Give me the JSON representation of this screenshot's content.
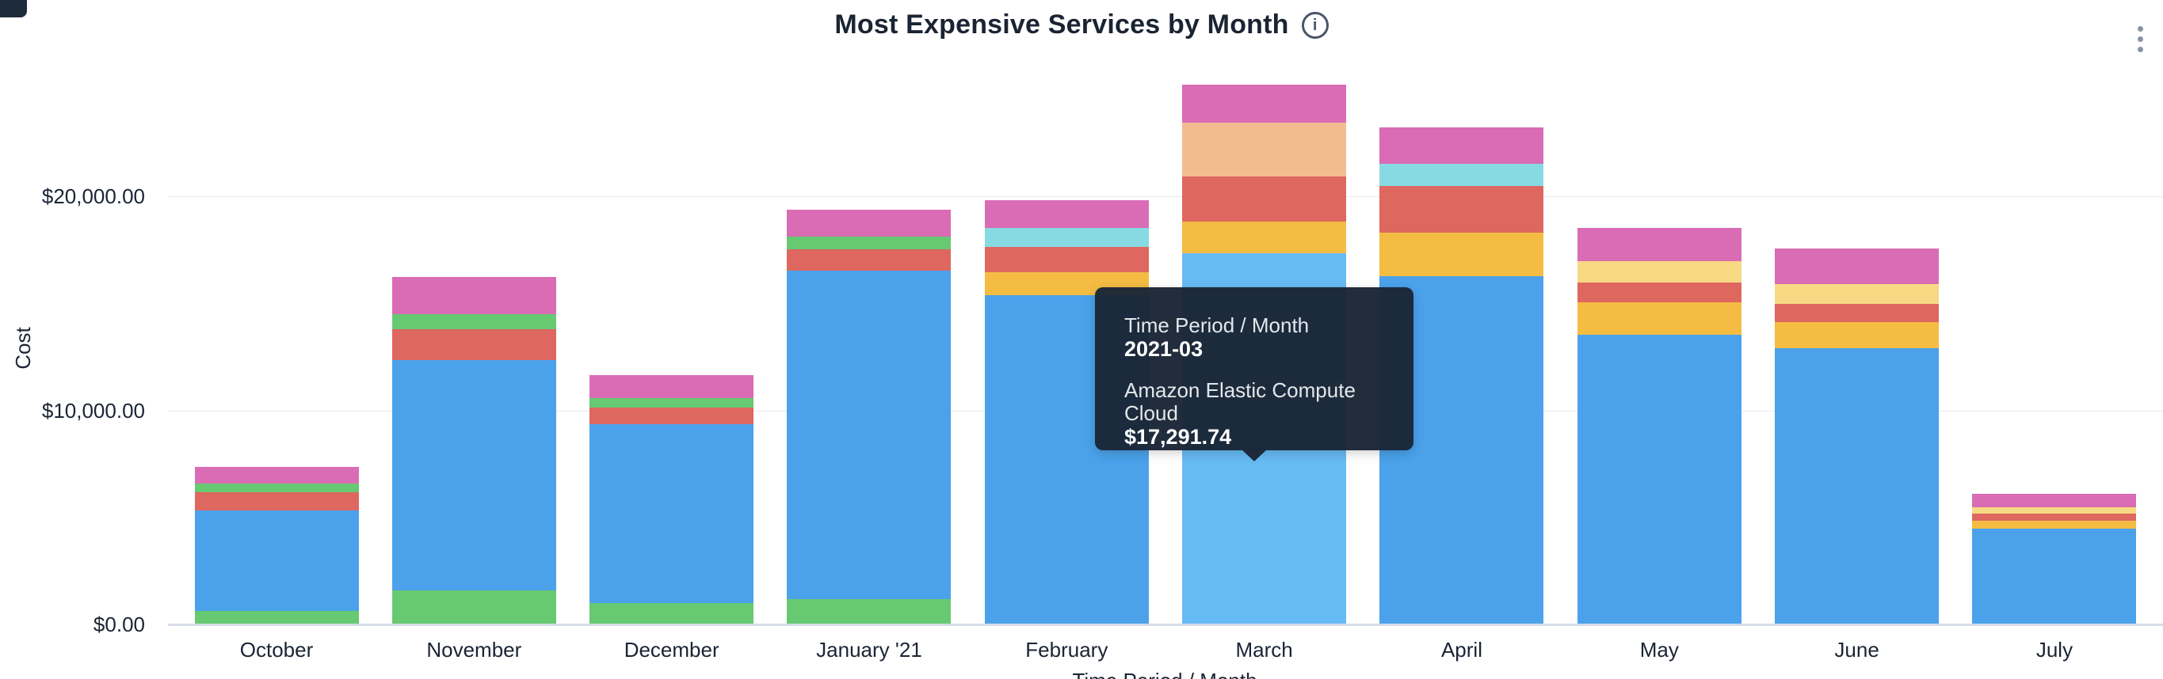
{
  "header": {
    "title": "Most Expensive Services by Month"
  },
  "y_axis": {
    "title": "Cost",
    "ticks": [
      "$20,000.00",
      "$10,000.00",
      "$0.00"
    ]
  },
  "x_axis": {
    "title": "Time Period / Month",
    "labels": [
      "October",
      "November",
      "December",
      "January '21",
      "February",
      "March",
      "April",
      "May",
      "June",
      "July"
    ]
  },
  "tooltip": {
    "header_label": "Time Period / Month",
    "period": "2021-03",
    "service": "Amazon Elastic Compute Cloud",
    "value": "$17,291.74"
  },
  "chart_data": {
    "type": "bar",
    "stacked": true,
    "title": "Most Expensive Services by Month",
    "xlabel": "Time Period / Month",
    "ylabel": "Cost",
    "ylim": [
      0,
      27000
    ],
    "y_ticks": [
      0,
      10000,
      20000
    ],
    "grid": "horizontal",
    "legend_visible": false,
    "categories": [
      "October",
      "November",
      "December",
      "January '21",
      "February",
      "March",
      "April",
      "May",
      "June",
      "July"
    ],
    "highlighted": {
      "month": "March",
      "series": "Amazon Elastic Compute Cloud",
      "value": 17291.74,
      "period": "2021-03"
    },
    "colors": {
      "blue": "#4ba2eb",
      "blue_highlight": "#67bbf4",
      "green": "#67c972",
      "red": "#de675f",
      "pink": "#d96cb4",
      "yellow": "#f4bc43",
      "pale_yellow": "#f8d983",
      "cyan": "#87dae2",
      "peach": "#f3bc8e"
    },
    "series_note": "blue = Amazon Elastic Compute Cloud (identified via tooltip); other segment services unlabeled in view, values estimated from axis scale",
    "bars": [
      {
        "month": "October",
        "total": 7310,
        "segments": [
          {
            "c": "green",
            "v": 610
          },
          {
            "c": "blue",
            "v": 4660
          },
          {
            "c": "red",
            "v": 850
          },
          {
            "c": "green",
            "v": 410
          },
          {
            "c": "pink",
            "v": 780
          }
        ]
      },
      {
        "month": "November",
        "total": 16180,
        "segments": [
          {
            "c": "green",
            "v": 1560
          },
          {
            "c": "blue",
            "v": 10740
          },
          {
            "c": "red",
            "v": 1460
          },
          {
            "c": "green",
            "v": 700
          },
          {
            "c": "pink",
            "v": 1720
          }
        ]
      },
      {
        "month": "December",
        "total": 11600,
        "segments": [
          {
            "c": "green",
            "v": 970
          },
          {
            "c": "blue",
            "v": 8340
          },
          {
            "c": "red",
            "v": 780
          },
          {
            "c": "green",
            "v": 460
          },
          {
            "c": "pink",
            "v": 1050
          }
        ]
      },
      {
        "month": "January '21",
        "total": 19330,
        "segments": [
          {
            "c": "green",
            "v": 1140
          },
          {
            "c": "blue",
            "v": 15350
          },
          {
            "c": "red",
            "v": 990
          },
          {
            "c": "green",
            "v": 580
          },
          {
            "c": "pink",
            "v": 1270
          }
        ]
      },
      {
        "month": "February",
        "total": 19780,
        "segments": [
          {
            "c": "blue",
            "v": 15320
          },
          {
            "c": "yellow",
            "v": 1070
          },
          {
            "c": "red",
            "v": 1210
          },
          {
            "c": "cyan",
            "v": 890
          },
          {
            "c": "pink",
            "v": 1290
          }
        ]
      },
      {
        "month": "March",
        "total": 25171.74,
        "segments": [
          {
            "c": "blue",
            "v": 17291.74,
            "hl": true
          },
          {
            "c": "yellow",
            "v": 1480
          },
          {
            "c": "red",
            "v": 2130
          },
          {
            "c": "peach",
            "v": 2510
          },
          {
            "c": "pink",
            "v": 1760
          }
        ]
      },
      {
        "month": "April",
        "total": 23180,
        "segments": [
          {
            "c": "blue",
            "v": 16240
          },
          {
            "c": "yellow",
            "v": 2000
          },
          {
            "c": "red",
            "v": 2200
          },
          {
            "c": "cyan",
            "v": 1040
          },
          {
            "c": "pink",
            "v": 1700
          }
        ]
      },
      {
        "month": "May",
        "total": 18480,
        "segments": [
          {
            "c": "blue",
            "v": 13490
          },
          {
            "c": "yellow",
            "v": 1510
          },
          {
            "c": "red",
            "v": 920
          },
          {
            "c": "pale_yellow",
            "v": 1020
          },
          {
            "c": "pink",
            "v": 1540
          }
        ]
      },
      {
        "month": "June",
        "total": 17530,
        "segments": [
          {
            "c": "blue",
            "v": 12860
          },
          {
            "c": "yellow",
            "v": 1220
          },
          {
            "c": "red",
            "v": 870
          },
          {
            "c": "pale_yellow",
            "v": 890
          },
          {
            "c": "pink",
            "v": 1690
          }
        ]
      },
      {
        "month": "July",
        "total": 6080,
        "segments": [
          {
            "c": "blue",
            "v": 4440
          },
          {
            "c": "yellow",
            "v": 370
          },
          {
            "c": "red",
            "v": 330
          },
          {
            "c": "pale_yellow",
            "v": 290
          },
          {
            "c": "pink",
            "v": 650
          }
        ]
      }
    ]
  }
}
